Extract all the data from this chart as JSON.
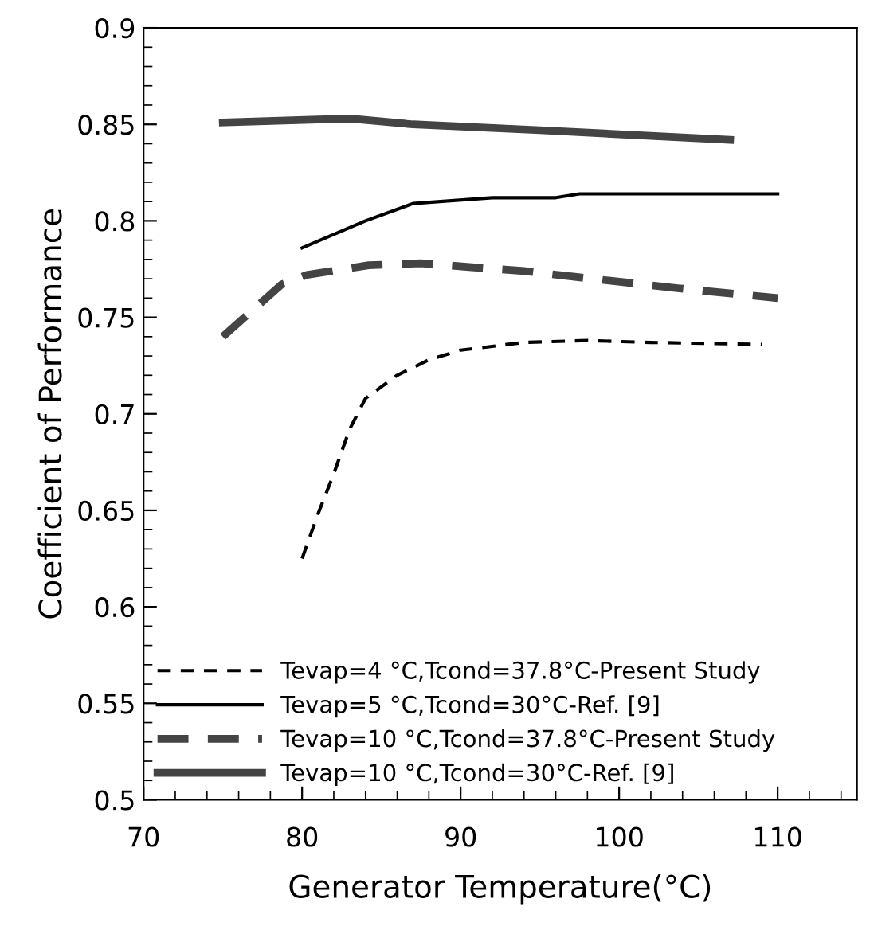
{
  "chart_data": {
    "type": "line",
    "xlabel": "Generator Temperature(°C)",
    "ylabel": "Coefficient of Performance",
    "xlim": [
      70,
      115
    ],
    "xticks": [
      70,
      80,
      90,
      100,
      110
    ],
    "ylim": [
      0.5,
      0.9
    ],
    "yticks": [
      0.5,
      0.55,
      0.6,
      0.65,
      0.7,
      0.75,
      0.8,
      0.85,
      0.9
    ],
    "grid": false,
    "legend": "bottom left",
    "marker": "none",
    "series": [
      {
        "name": "Tevap=4 °C,Tcond=37.8°C-Present Study",
        "color": "#000000",
        "line_style": "dashed",
        "x": [
          80,
          81,
          82,
          83,
          84,
          86,
          88,
          90,
          94,
          98,
          102,
          109
        ],
        "values": [
          0.625,
          0.648,
          0.669,
          0.692,
          0.708,
          0.72,
          0.728,
          0.733,
          0.737,
          0.738,
          0.737,
          0.736
        ]
      },
      {
        "name": "Tevap=5 °C,Tcond=30°C-Ref. [9]",
        "color": "#000000",
        "line_style": "solid",
        "x": [
          80,
          84,
          87,
          92,
          96,
          97.5,
          110
        ],
        "values": [
          0.786,
          0.8,
          0.809,
          0.812,
          0.812,
          0.814,
          0.814
        ]
      },
      {
        "name": "Tevap=10 °C,Tcond=37.8°C-Present Study",
        "color": "#444444",
        "line_style": "dashed",
        "x": [
          75,
          78.7,
          80.3,
          84.2,
          87.5,
          90.7,
          94,
          97.2,
          100.5,
          103.8,
          110
        ],
        "values": [
          0.74,
          0.767,
          0.772,
          0.777,
          0.778,
          0.776,
          0.774,
          0.771,
          0.768,
          0.765,
          0.76
        ]
      },
      {
        "name": "Tevap=10 °C,Tcond=30°C-Ref. [9]",
        "color": "#444444",
        "line_style": "solid",
        "x": [
          75,
          83,
          87,
          95,
          107
        ],
        "values": [
          0.851,
          0.853,
          0.85,
          0.847,
          0.842
        ]
      }
    ]
  }
}
